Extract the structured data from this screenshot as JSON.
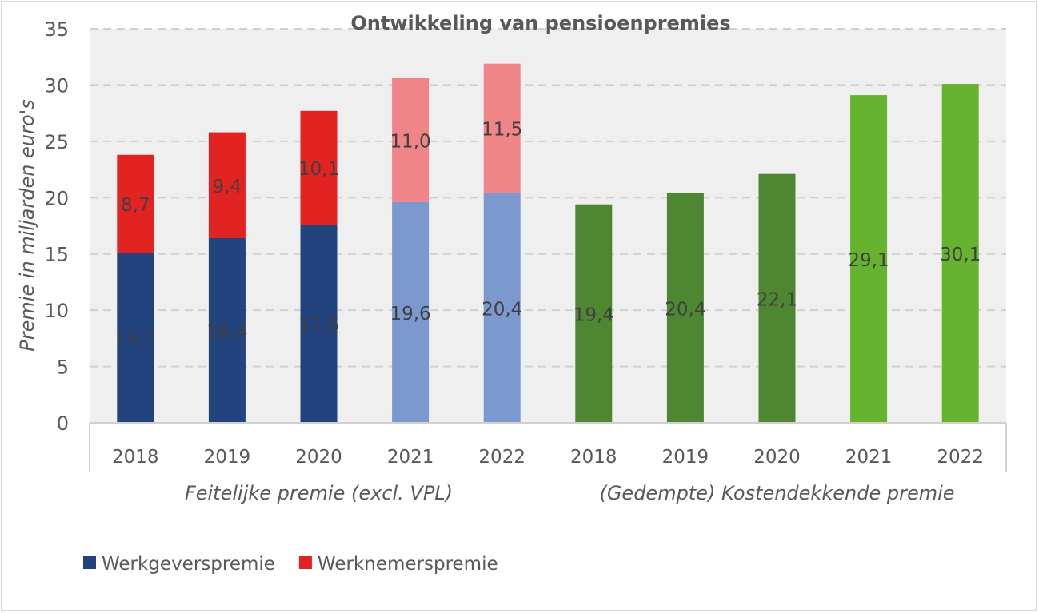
{
  "chart_data": {
    "type": "bar",
    "stacked": true,
    "title": "Ontwikkeling van pensioenpremies",
    "ylabel": "Premie in miljarden euro's",
    "ylim": [
      0,
      35
    ],
    "yticks": [
      0,
      5,
      10,
      15,
      20,
      25,
      30,
      35
    ],
    "grid": true,
    "legend_position": "bottom-left",
    "groups": [
      {
        "label": "Feitelijke premie (excl. VPL)",
        "categories": [
          "2018",
          "2019",
          "2020",
          "2021",
          "2022"
        ]
      },
      {
        "label": "(Gedempte) Kostendekkende premie",
        "categories": [
          "2018",
          "2019",
          "2020",
          "2021",
          "2022"
        ]
      }
    ],
    "categories": [
      "2018",
      "2019",
      "2020",
      "2021",
      "2022",
      "2018",
      "2019",
      "2020",
      "2021",
      "2022"
    ],
    "series": [
      {
        "name": "Werkgeverspremie",
        "values": [
          15.1,
          16.4,
          17.6,
          19.6,
          20.4,
          null,
          null,
          null,
          null,
          null
        ],
        "colors": [
          "#23437f",
          "#23437f",
          "#23437f",
          "#7b98cf",
          "#7b98cf"
        ]
      },
      {
        "name": "Werknemerspremie",
        "values": [
          8.7,
          9.4,
          10.1,
          11.0,
          11.5,
          null,
          null,
          null,
          null,
          null
        ],
        "colors": [
          "#e32322",
          "#e32322",
          "#e32322",
          "#f08589",
          "#f08589"
        ]
      },
      {
        "values": [
          null,
          null,
          null,
          null,
          null,
          19.4,
          20.4,
          22.1,
          29.1,
          30.1
        ],
        "colors": [
          "#4f8631",
          "#4f8631",
          "#4f8631",
          "#65b32e",
          "#65b32e"
        ]
      }
    ],
    "data_labels": [
      "15,1",
      "16,4",
      "17,6",
      "19,6",
      "20,4",
      "8,7",
      "9,4",
      "10,1",
      "11,0",
      "11,5",
      "19,4",
      "20,4",
      "22,1",
      "29,1",
      "30,1"
    ],
    "legend": [
      {
        "name": "Werkgeverspremie",
        "color": "#23437f"
      },
      {
        "name": "Werknemerspremie",
        "color": "#e32322"
      }
    ]
  }
}
